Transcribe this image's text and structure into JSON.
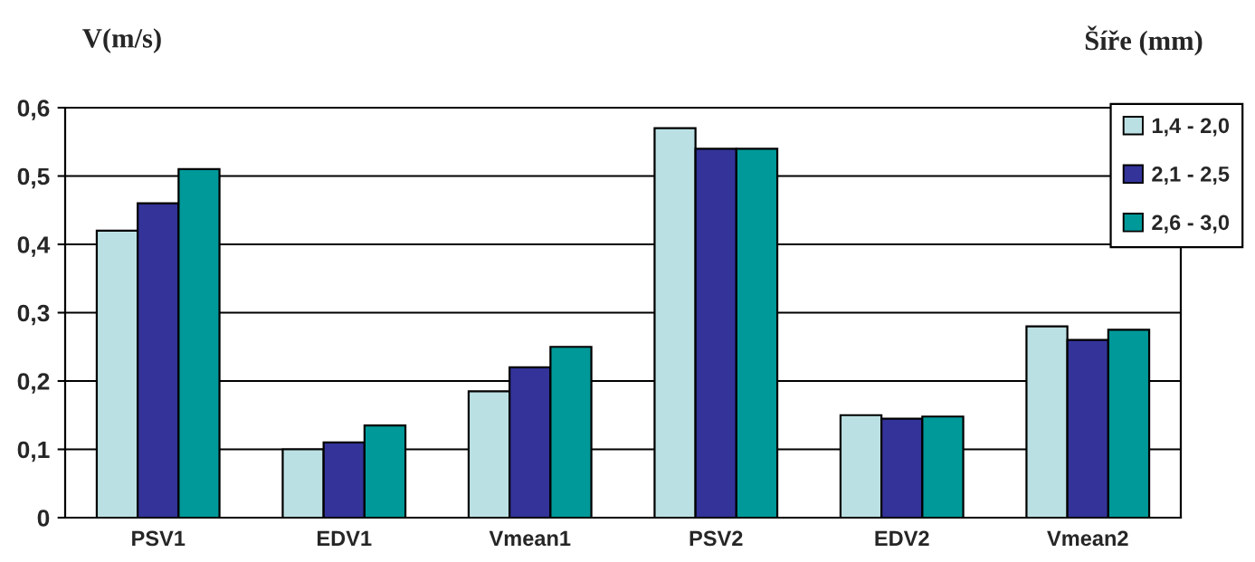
{
  "chart_data": {
    "type": "bar",
    "ylabel": "V(m/s)",
    "legend_title": "Šíře (mm)",
    "categories": [
      "PSV1",
      "EDV1",
      "Vmean1",
      "PSV2",
      "EDV2",
      "Vmean2"
    ],
    "series": [
      {
        "name": "1,4 - 2,0",
        "color": "#bbe0e3",
        "values": [
          0.42,
          0.1,
          0.185,
          0.57,
          0.15,
          0.28
        ]
      },
      {
        "name": "2,1 - 2,5",
        "color": "#333399",
        "values": [
          0.46,
          0.11,
          0.22,
          0.54,
          0.145,
          0.26
        ]
      },
      {
        "name": "2,6 - 3,0",
        "color": "#009999",
        "values": [
          0.51,
          0.135,
          0.25,
          0.54,
          0.148,
          0.275
        ]
      }
    ],
    "ylim": [
      0,
      0.6
    ],
    "yticks": [
      0,
      {
        "value": 0.1,
        "label": "0,1"
      },
      {
        "value": 0.2,
        "label": "0,2"
      },
      {
        "value": 0.3,
        "label": "0,3"
      },
      {
        "value": 0.4,
        "label": "0,4"
      },
      {
        "value": 0.5,
        "label": "0,5"
      },
      {
        "value": 0.6,
        "label": "0,6"
      }
    ],
    "grid": "y",
    "legend": "top right"
  }
}
